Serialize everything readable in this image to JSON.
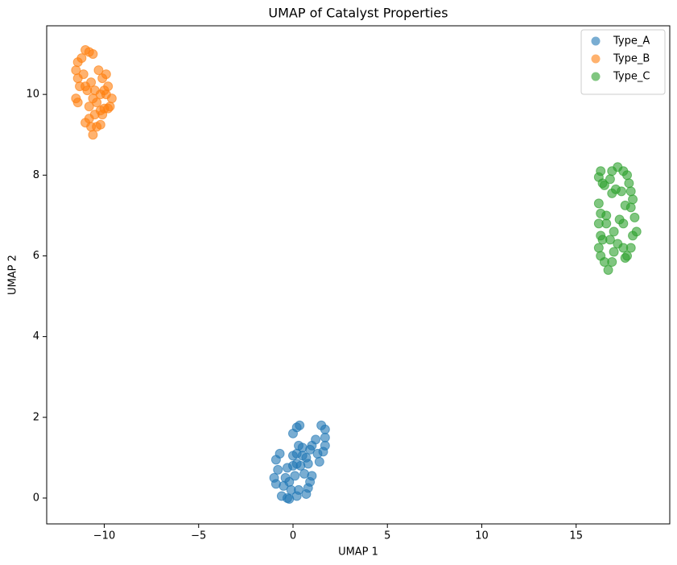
{
  "chart_data": {
    "type": "scatter",
    "title": "UMAP of Catalyst Properties",
    "x_label": "UMAP 1",
    "y_label": "UMAP 2",
    "xlim": [
      -13.05,
      19.96
    ],
    "ylim": [
      -0.64,
      11.7
    ],
    "xticks": [
      {
        "value": -10,
        "label": "−10"
      },
      {
        "value": -5,
        "label": "−5"
      },
      0,
      5,
      10,
      15
    ],
    "yticks": [
      0,
      2,
      4,
      6,
      8,
      10
    ],
    "legend": "upper right",
    "grid": false,
    "series": [
      {
        "name": "Type_A",
        "color": "#1f77b4",
        "x": [
          -0.9,
          -0.7,
          -0.8,
          -1.0,
          -0.9,
          -0.6,
          -0.3,
          -0.2,
          0.2,
          0.7,
          0.8,
          0.9,
          1.0,
          0.6,
          0.4,
          0.2,
          0.0,
          -0.3,
          -0.4,
          -0.2,
          0.1,
          0.3,
          -0.1,
          0.0,
          0.2,
          0.3,
          0.5,
          0.7,
          0.8,
          1.0,
          1.2,
          1.3,
          1.4,
          1.6,
          1.7,
          1.7,
          1.7,
          1.5,
          0.2,
          0.35,
          0.0,
          0.5,
          0.9,
          -0.5
        ],
        "values": [
          0.95,
          1.1,
          0.7,
          0.5,
          0.35,
          0.05,
          0.0,
          -0.02,
          0.05,
          0.1,
          0.25,
          0.4,
          0.55,
          0.6,
          0.8,
          0.85,
          0.8,
          0.75,
          0.5,
          0.4,
          0.55,
          0.2,
          0.2,
          1.05,
          1.1,
          1.3,
          1.25,
          1.0,
          0.85,
          1.3,
          1.45,
          1.1,
          0.9,
          1.15,
          1.3,
          1.5,
          1.7,
          1.8,
          1.75,
          1.8,
          1.6,
          1.05,
          1.2,
          0.3
        ]
      },
      {
        "name": "Type_B",
        "color": "#ff7f0e",
        "x": [
          -11.5,
          -11.4,
          -11.2,
          -11.0,
          -10.8,
          -10.6,
          -11.4,
          -11.3,
          -11.0,
          -10.7,
          -10.5,
          -10.3,
          -10.1,
          -9.9,
          -9.8,
          -9.9,
          -9.7,
          -9.6,
          -10.0,
          -10.2,
          -10.4,
          -10.6,
          -10.8,
          -11.4,
          -11.5,
          -11.0,
          -10.8,
          -10.7,
          -10.6,
          -10.4,
          -10.2,
          -10.1,
          -9.8,
          -10.9,
          -10.2,
          -11.1,
          -10.0,
          -10.5
        ],
        "values": [
          10.6,
          10.8,
          10.9,
          11.1,
          11.05,
          11.0,
          10.4,
          10.2,
          10.2,
          10.3,
          10.1,
          10.6,
          10.4,
          10.5,
          10.2,
          10.0,
          9.7,
          9.9,
          9.65,
          9.6,
          9.8,
          9.9,
          9.7,
          9.8,
          9.9,
          9.3,
          9.4,
          9.2,
          9.0,
          9.2,
          9.25,
          9.5,
          9.65,
          10.1,
          10.0,
          10.5,
          10.1,
          9.5
        ]
      },
      {
        "name": "Type_C",
        "color": "#2ca02c",
        "x": [
          16.2,
          16.3,
          16.4,
          16.5,
          16.8,
          16.9,
          17.2,
          17.5,
          17.7,
          17.8,
          17.9,
          18.0,
          17.9,
          17.6,
          17.4,
          17.1,
          16.9,
          16.6,
          16.3,
          16.2,
          16.2,
          16.3,
          16.2,
          16.3,
          16.5,
          16.7,
          16.9,
          17.0,
          17.2,
          17.5,
          17.7,
          17.9,
          18.0,
          18.2,
          18.1,
          17.5,
          17.0,
          16.8,
          16.6,
          17.3,
          17.6,
          16.4
        ],
        "values": [
          7.95,
          8.1,
          7.8,
          7.75,
          7.9,
          8.1,
          8.2,
          8.1,
          8.0,
          7.8,
          7.6,
          7.4,
          7.2,
          7.25,
          7.6,
          7.65,
          7.55,
          7.0,
          7.05,
          7.3,
          6.8,
          6.5,
          6.2,
          6.0,
          5.85,
          5.65,
          5.85,
          6.1,
          6.3,
          6.2,
          6.0,
          6.2,
          6.5,
          6.6,
          6.95,
          6.8,
          6.6,
          6.4,
          6.8,
          6.9,
          5.95,
          6.4
        ]
      }
    ]
  }
}
